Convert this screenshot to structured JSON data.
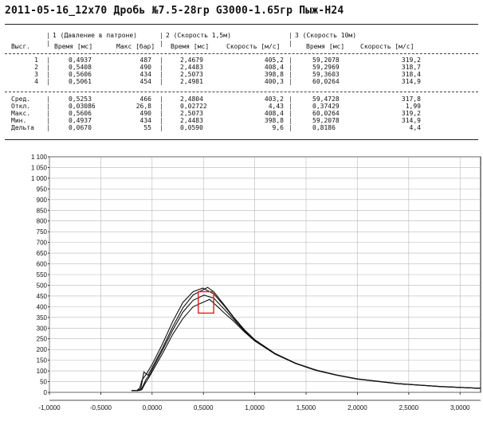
{
  "title": "2011-05-16_12x70 Дробь №7.5-28гр G3000-1.65гр Пыж-Н24",
  "table": {
    "group_headers": [
      "1 (Давление в патроне)",
      "2 (Скорость 1,5м)",
      "3 (Скорость 10м)"
    ],
    "col_headers": [
      "Высг.",
      "Время [мс]",
      "Макс [бар]",
      "Время [мс]",
      "Скорость [м/с]",
      "Время [мс]",
      "Скорость [м/с]"
    ],
    "rows": [
      [
        "1",
        "0,4937",
        "487",
        "2,4679",
        "405,2",
        "59,2078",
        "319,2"
      ],
      [
        "2",
        "0,5408",
        "490",
        "2,4483",
        "408,4",
        "59,2969",
        "318,7"
      ],
      [
        "3",
        "0,5606",
        "434",
        "2,5073",
        "398,8",
        "59,3603",
        "318,4"
      ],
      [
        "4",
        "0,5061",
        "454",
        "2,4981",
        "400,3",
        "60,0264",
        "314,9"
      ]
    ],
    "stats": [
      [
        "Сред.",
        "0,5253",
        "466",
        "2,4804",
        "403,2",
        "59,4728",
        "317,8"
      ],
      [
        "Откл.",
        "0,03086",
        "26,8",
        "0,02722",
        "4,43",
        "0,37429",
        "1,99"
      ],
      [
        "Макс.",
        "0,5606",
        "490",
        "2,5073",
        "408,4",
        "60,0264",
        "319,2"
      ],
      [
        "Мин.",
        "0,4937",
        "434",
        "2,4483",
        "398,8",
        "59,2078",
        "314,9"
      ],
      [
        "Дельта",
        "0,0670",
        "55",
        "0,0590",
        "9,6",
        "0,8186",
        "4,4"
      ]
    ]
  },
  "chart_data": {
    "type": "line",
    "title": "",
    "xlabel": "",
    "ylabel": "",
    "xlim": [
      -1.0,
      3.2
    ],
    "ylim": [
      0,
      1100
    ],
    "x_ticks": [
      "-1,0000",
      "-0,5000",
      "0,0000",
      "0,5000",
      "1,0000",
      "1,5000",
      "2,0000",
      "2,5000",
      "3,0000"
    ],
    "y_ticks": [
      "0",
      "50",
      "100",
      "150",
      "200",
      "250",
      "300",
      "350",
      "400",
      "450",
      "500",
      "550",
      "600",
      "650",
      "700",
      "750",
      "800",
      "850",
      "900",
      "950",
      "1 000",
      "1 050",
      "1 100"
    ],
    "grid": true,
    "series": [
      {
        "peak_x": 0.4937,
        "peak_y": 487,
        "x": [
          -0.2,
          -0.15,
          -0.12,
          -0.1,
          -0.05,
          0.0,
          0.1,
          0.2,
          0.3,
          0.4,
          0.4937,
          0.6,
          0.7,
          0.8,
          0.9,
          1.0,
          1.2,
          1.4,
          1.6,
          1.8,
          2.0,
          2.4,
          2.8,
          3.2
        ],
        "y": [
          8,
          8,
          20,
          55,
          90,
          130,
          225,
          330,
          420,
          470,
          487,
          460,
          405,
          345,
          290,
          245,
          180,
          135,
          103,
          80,
          62,
          40,
          27,
          19
        ]
      },
      {
        "peak_x": 0.5408,
        "peak_y": 490,
        "x": [
          -0.2,
          -0.14,
          -0.11,
          -0.08,
          -0.04,
          0.0,
          0.1,
          0.2,
          0.3,
          0.4,
          0.5408,
          0.6,
          0.7,
          0.8,
          0.9,
          1.0,
          1.2,
          1.4,
          1.6,
          1.8,
          2.0,
          2.4,
          2.8,
          3.2
        ],
        "y": [
          8,
          8,
          15,
          95,
          80,
          115,
          205,
          305,
          395,
          455,
          490,
          470,
          410,
          348,
          292,
          246,
          181,
          136,
          104,
          81,
          63,
          41,
          28,
          19
        ]
      },
      {
        "peak_x": 0.5606,
        "peak_y": 434,
        "x": [
          -0.2,
          -0.13,
          -0.1,
          -0.07,
          -0.03,
          0.0,
          0.1,
          0.2,
          0.3,
          0.4,
          0.5606,
          0.65,
          0.7,
          0.8,
          0.9,
          1.0,
          1.2,
          1.4,
          1.6,
          1.8,
          2.0,
          2.4,
          2.8,
          3.2
        ],
        "y": [
          8,
          8,
          12,
          40,
          70,
          95,
          180,
          270,
          345,
          400,
          434,
          395,
          372,
          330,
          282,
          240,
          178,
          134,
          102,
          80,
          62,
          40,
          27,
          19
        ]
      },
      {
        "peak_x": 0.5061,
        "peak_y": 454,
        "x": [
          -0.2,
          -0.14,
          -0.1,
          -0.06,
          -0.02,
          0.0,
          0.1,
          0.2,
          0.3,
          0.4,
          0.5061,
          0.6,
          0.7,
          0.8,
          0.9,
          1.0,
          1.2,
          1.4,
          1.6,
          1.8,
          2.0,
          2.4,
          2.8,
          3.2
        ],
        "y": [
          8,
          8,
          18,
          60,
          85,
          105,
          195,
          290,
          375,
          430,
          454,
          440,
          390,
          338,
          286,
          243,
          179,
          135,
          103,
          80,
          62,
          40,
          27,
          19
        ]
      }
    ],
    "highlight_box": {
      "x": [
        0.45,
        0.6
      ],
      "y": [
        370,
        470
      ],
      "color": "#e02020"
    },
    "line_color": "#111111"
  }
}
